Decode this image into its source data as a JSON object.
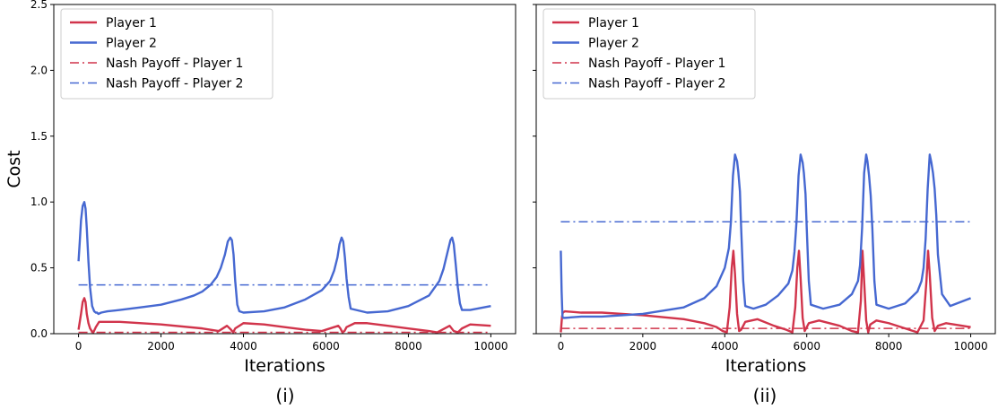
{
  "chart_data": [
    {
      "type": "line",
      "panel_label": "(i)",
      "xlabel": "Iterations",
      "ylabel": "Cost",
      "xlim": [
        -600,
        10600
      ],
      "ylim": [
        0,
        2.5
      ],
      "xticks": [
        0,
        2000,
        4000,
        6000,
        8000,
        10000
      ],
      "xtick_labels": [
        "0",
        "2000",
        "4000",
        "6000",
        "8000",
        "10000"
      ],
      "yticks": [
        0.0,
        0.5,
        1.0,
        1.5,
        2.0,
        2.5
      ],
      "ytick_labels": [
        "0.0",
        "0.5",
        "1.0",
        "1.5",
        "2.0",
        "2.5"
      ],
      "grid": false,
      "legend_position": "top-left",
      "series": [
        {
          "name": "Player 1",
          "style": "solid",
          "color": "#d1344b",
          "x": [
            0,
            60,
            100,
            140,
            170,
            200,
            240,
            280,
            320,
            360,
            420,
            500,
            1000,
            2000,
            3000,
            3400,
            3600,
            3700,
            3750,
            3800,
            4000,
            4500,
            5000,
            5500,
            5900,
            6300,
            6350,
            6400,
            6450,
            6500,
            6700,
            7000,
            7500,
            8000,
            8500,
            8700,
            9000,
            9100,
            9200,
            9300,
            9500,
            10000
          ],
          "y": [
            0.03,
            0.15,
            0.24,
            0.27,
            0.24,
            0.15,
            0.08,
            0.04,
            0.02,
            0.01,
            0.05,
            0.09,
            0.09,
            0.07,
            0.04,
            0.02,
            0.06,
            0.03,
            0.01,
            0.04,
            0.08,
            0.07,
            0.05,
            0.03,
            0.02,
            0.06,
            0.04,
            0.01,
            0.02,
            0.05,
            0.08,
            0.08,
            0.06,
            0.04,
            0.02,
            0.01,
            0.06,
            0.02,
            0.01,
            0.04,
            0.07,
            0.06
          ]
        },
        {
          "name": "Player 2",
          "style": "solid",
          "color": "#4668d1",
          "x": [
            0,
            30,
            60,
            100,
            140,
            170,
            200,
            240,
            280,
            330,
            380,
            420,
            450,
            480,
            550,
            700,
            1000,
            1500,
            2000,
            2500,
            2800,
            3000,
            3200,
            3350,
            3450,
            3550,
            3620,
            3680,
            3720,
            3760,
            3800,
            3850,
            3900,
            4000,
            4500,
            5000,
            5500,
            5900,
            6100,
            6200,
            6280,
            6330,
            6380,
            6420,
            6460,
            6500,
            6550,
            6600,
            7000,
            7500,
            8000,
            8500,
            8750,
            8850,
            8950,
            9020,
            9060,
            9100,
            9150,
            9200,
            9250,
            9300,
            9500,
            10000
          ],
          "y": [
            0.55,
            0.7,
            0.86,
            0.97,
            1.0,
            0.95,
            0.8,
            0.55,
            0.35,
            0.21,
            0.17,
            0.16,
            0.16,
            0.15,
            0.16,
            0.17,
            0.18,
            0.2,
            0.22,
            0.26,
            0.29,
            0.32,
            0.37,
            0.43,
            0.5,
            0.6,
            0.7,
            0.73,
            0.71,
            0.6,
            0.4,
            0.22,
            0.17,
            0.16,
            0.17,
            0.2,
            0.26,
            0.33,
            0.4,
            0.48,
            0.58,
            0.68,
            0.73,
            0.7,
            0.58,
            0.42,
            0.28,
            0.19,
            0.16,
            0.17,
            0.21,
            0.29,
            0.4,
            0.49,
            0.62,
            0.71,
            0.73,
            0.68,
            0.52,
            0.35,
            0.23,
            0.18,
            0.18,
            0.21
          ]
        },
        {
          "name": "Nash Payoff - Player 1",
          "style": "dashdot",
          "color": "#d1344b",
          "x": [
            0,
            10000
          ],
          "y": [
            0.01,
            0.01
          ]
        },
        {
          "name": "Nash Payoff - Player 2",
          "style": "dashdot",
          "color": "#4668d1",
          "x": [
            0,
            10000
          ],
          "y": [
            0.37,
            0.37
          ]
        }
      ]
    },
    {
      "type": "line",
      "panel_label": "(ii)",
      "xlabel": "Iterations",
      "ylabel": "",
      "xlim": [
        -600,
        10600
      ],
      "ylim": [
        0,
        2.5
      ],
      "xticks": [
        0,
        2000,
        4000,
        6000,
        8000,
        10000
      ],
      "xtick_labels": [
        "0",
        "2000",
        "4000",
        "6000",
        "8000",
        "10000"
      ],
      "yticks": [
        0.0,
        0.5,
        1.0,
        1.5,
        2.0,
        2.5
      ],
      "ytick_labels": [],
      "grid": false,
      "legend_position": "top-left",
      "series": [
        {
          "name": "Player 1",
          "style": "solid",
          "color": "#d1344b",
          "x": [
            0,
            30,
            50,
            100,
            500,
            1000,
            2000,
            3000,
            3500,
            3800,
            3950,
            4050,
            4120,
            4170,
            4210,
            4250,
            4300,
            4350,
            4400,
            4500,
            4800,
            5200,
            5500,
            5650,
            5720,
            5770,
            5810,
            5850,
            5900,
            5950,
            6050,
            6300,
            6800,
            7100,
            7250,
            7320,
            7360,
            7400,
            7450,
            7500,
            7550,
            7700,
            8000,
            8400,
            8700,
            8850,
            8920,
            8960,
            9000,
            9060,
            9120,
            9200,
            9400,
            10000
          ],
          "y": [
            0.01,
            0.13,
            0.16,
            0.17,
            0.16,
            0.16,
            0.14,
            0.11,
            0.08,
            0.05,
            0.02,
            0.01,
            0.2,
            0.5,
            0.63,
            0.45,
            0.15,
            0.02,
            0.03,
            0.09,
            0.11,
            0.06,
            0.03,
            0.01,
            0.2,
            0.5,
            0.63,
            0.42,
            0.12,
            0.02,
            0.08,
            0.1,
            0.06,
            0.02,
            0.01,
            0.25,
            0.63,
            0.4,
            0.1,
            0.01,
            0.07,
            0.1,
            0.08,
            0.04,
            0.01,
            0.1,
            0.4,
            0.63,
            0.45,
            0.12,
            0.02,
            0.06,
            0.08,
            0.05
          ]
        },
        {
          "name": "Player 2",
          "style": "solid",
          "color": "#4668d1",
          "x": [
            0,
            20,
            40,
            60,
            100,
            500,
            1000,
            2000,
            3000,
            3500,
            3800,
            4000,
            4100,
            4150,
            4200,
            4250,
            4300,
            4330,
            4370,
            4400,
            4450,
            4500,
            4700,
            5000,
            5300,
            5550,
            5650,
            5700,
            5750,
            5800,
            5850,
            5900,
            5930,
            5970,
            6000,
            6050,
            6100,
            6400,
            6800,
            7100,
            7250,
            7300,
            7350,
            7400,
            7450,
            7480,
            7520,
            7560,
            7600,
            7650,
            7700,
            8000,
            8400,
            8700,
            8800,
            8850,
            8900,
            8950,
            9000,
            9040,
            9080,
            9120,
            9160,
            9200,
            9300,
            9500,
            10000
          ],
          "y": [
            0.63,
            0.32,
            0.13,
            0.12,
            0.12,
            0.13,
            0.13,
            0.15,
            0.2,
            0.27,
            0.36,
            0.5,
            0.65,
            0.85,
            1.2,
            1.36,
            1.31,
            1.23,
            1.08,
            0.8,
            0.4,
            0.21,
            0.19,
            0.22,
            0.29,
            0.38,
            0.48,
            0.62,
            0.85,
            1.2,
            1.36,
            1.3,
            1.22,
            1.06,
            0.8,
            0.4,
            0.22,
            0.19,
            0.22,
            0.3,
            0.4,
            0.52,
            0.8,
            1.22,
            1.36,
            1.31,
            1.2,
            1.05,
            0.8,
            0.4,
            0.22,
            0.19,
            0.23,
            0.32,
            0.4,
            0.5,
            0.72,
            1.1,
            1.36,
            1.3,
            1.22,
            1.1,
            0.9,
            0.6,
            0.3,
            0.21,
            0.27
          ]
        },
        {
          "name": "Nash Payoff - Player 1",
          "style": "dashdot",
          "color": "#d1344b",
          "x": [
            0,
            10000
          ],
          "y": [
            0.04,
            0.04
          ]
        },
        {
          "name": "Nash Payoff - Player 2",
          "style": "dashdot",
          "color": "#4668d1",
          "x": [
            0,
            10000
          ],
          "y": [
            0.85,
            0.85
          ]
        }
      ]
    }
  ]
}
